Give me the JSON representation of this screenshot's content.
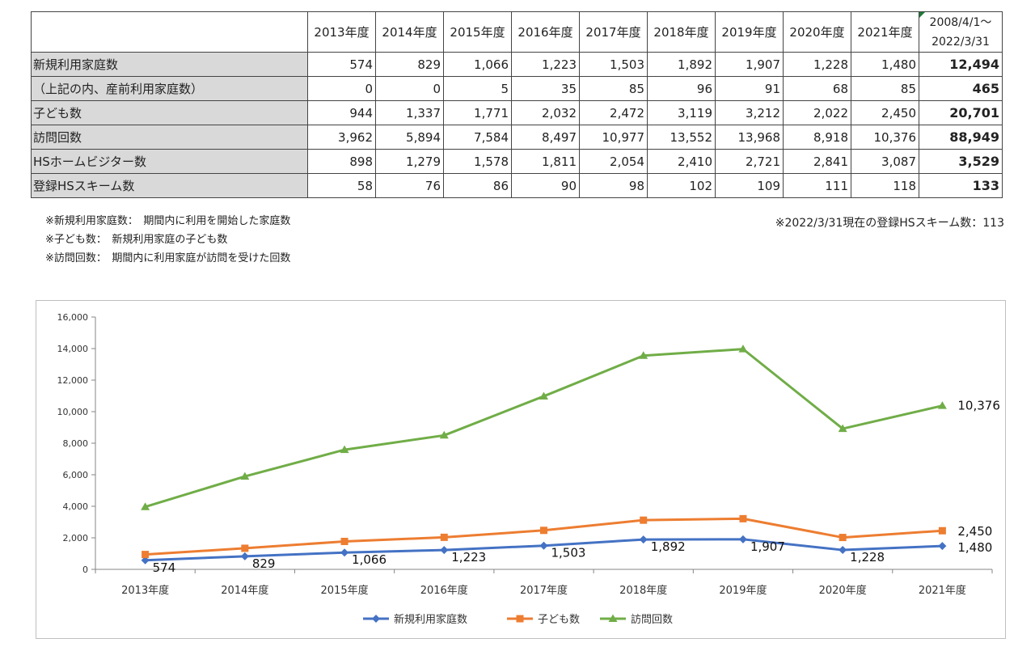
{
  "table": {
    "years": [
      "2013年度",
      "2014年度",
      "2015年度",
      "2016年度",
      "2017年度",
      "2018年度",
      "2019年度",
      "2020年度",
      "2021年度"
    ],
    "total_header_line1": "2008/4/1～",
    "total_header_line2": "2022/3/31",
    "rows": [
      {
        "label": "新規利用家庭数",
        "values": [
          "574",
          "829",
          "1,066",
          "1,223",
          "1,503",
          "1,892",
          "1,907",
          "1,228",
          "1,480"
        ],
        "total": "12,494"
      },
      {
        "label": "（上記の内、産前利用家庭数）",
        "values": [
          "0",
          "0",
          "5",
          "35",
          "85",
          "96",
          "91",
          "68",
          "85"
        ],
        "total": "465"
      },
      {
        "label": "子ども数",
        "values": [
          "944",
          "1,337",
          "1,771",
          "2,032",
          "2,472",
          "3,119",
          "3,212",
          "2,022",
          "2,450"
        ],
        "total": "20,701"
      },
      {
        "label": "訪問回数",
        "values": [
          "3,962",
          "5,894",
          "7,584",
          "8,497",
          "10,977",
          "13,552",
          "13,968",
          "8,918",
          "10,376"
        ],
        "total": "88,949"
      },
      {
        "label": "HSホームビジター数",
        "values": [
          "898",
          "1,279",
          "1,578",
          "1,811",
          "2,054",
          "2,410",
          "2,721",
          "2,841",
          "3,087"
        ],
        "total": "3,529"
      },
      {
        "label": "登録HSスキーム数",
        "values": [
          "58",
          "76",
          "86",
          "90",
          "98",
          "102",
          "109",
          "111",
          "118"
        ],
        "total": "133"
      }
    ]
  },
  "notes": {
    "left": [
      "※新規利用家庭数：　期間内に利用を開始した家庭数",
      "※子ども数：　新規利用家庭の子ども数",
      "※訪問回数：　期間内に利用家庭が訪問を受けた回数"
    ],
    "right": "※2022/3/31現在の登録HSスキーム数：113"
  },
  "chart_data": {
    "type": "line",
    "categories": [
      "2013年度",
      "2014年度",
      "2015年度",
      "2016年度",
      "2017年度",
      "2018年度",
      "2019年度",
      "2020年度",
      "2021年度"
    ],
    "ylim": [
      0,
      16000
    ],
    "yticks": [
      "0",
      "2,000",
      "4,000",
      "6,000",
      "8,000",
      "10,000",
      "12,000",
      "14,000",
      "16,000"
    ],
    "grid": false,
    "legend": "bottom",
    "series": [
      {
        "name": "新規利用家庭数",
        "values": [
          574,
          829,
          1066,
          1223,
          1503,
          1892,
          1907,
          1228,
          1480
        ],
        "color": "#4472c4",
        "marker": "diamond",
        "labels": [
          "574",
          "829",
          "1,066",
          "1,223",
          "1,503",
          "1,892",
          "1,907",
          "1,228",
          "1,480"
        ]
      },
      {
        "name": "子ども数",
        "values": [
          944,
          1337,
          1771,
          2032,
          2472,
          3119,
          3212,
          2022,
          2450
        ],
        "color": "#ed7d31",
        "marker": "square",
        "labels": [
          "",
          "",
          "",
          "",
          "",
          "",
          "",
          "",
          "2,450"
        ]
      },
      {
        "name": "訪問回数",
        "values": [
          3962,
          5894,
          7584,
          8497,
          10977,
          13552,
          13968,
          8918,
          10376
        ],
        "color": "#70ad47",
        "marker": "triangle",
        "labels": [
          "",
          "",
          "",
          "",
          "",
          "",
          "",
          "",
          "10,376"
        ]
      }
    ]
  }
}
